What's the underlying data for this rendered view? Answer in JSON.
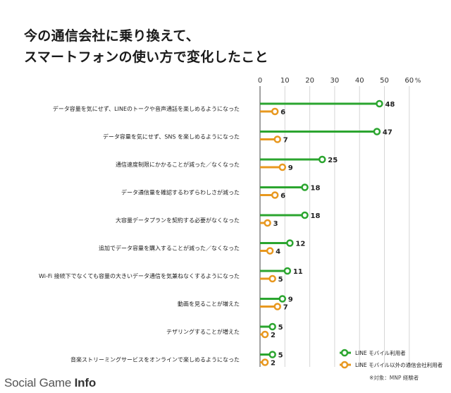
{
  "title": {
    "line1": "今の通信会社に乗り換えて、",
    "line2": "スマートフォンの使い方で変化したこと"
  },
  "chart_data": {
    "type": "bar",
    "categories": [
      "データ容量を気にせず、LINEのトークや音声通話を楽しめるようになった",
      "データ容量を気にせず、SNS を楽しめるようになった",
      "通信速度制限にかかることが減った／なくなった",
      "データ通信量を確認するわずらわしさが減った",
      "大容量データプランを契約する必要がなくなった",
      "追加でデータ容量を購入することが減った／なくなった",
      "Wi-Fi 接続下でなくても容量の大きいデータ通信を気兼ねなくするようになった",
      "動画を見ることが増えた",
      "テザリングすることが増えた",
      "音楽ストリーミングサービスをオンラインで楽しめるようになった"
    ],
    "series": [
      {
        "name": "LINE モバイル利用者",
        "values": [
          48,
          47,
          25,
          18,
          18,
          12,
          11,
          9,
          5,
          5
        ]
      },
      {
        "name": "LINE モバイル以外の通信会社利用者",
        "values": [
          6,
          7,
          9,
          6,
          3,
          4,
          5,
          7,
          2,
          2
        ]
      }
    ],
    "x_ticks": [
      "0",
      "10",
      "20",
      "30",
      "40",
      "50",
      "60"
    ],
    "x_unit": "%",
    "xlim": [
      0,
      60
    ],
    "grid": true,
    "legend": "bottom-right",
    "colors": {
      "series1": "#2ba52f",
      "series2": "#e8981f",
      "grid": "#d6d6d6"
    }
  },
  "note": "※対象：MNP 経験者",
  "watermark": {
    "regular": "Social Game ",
    "bold": "Info"
  }
}
